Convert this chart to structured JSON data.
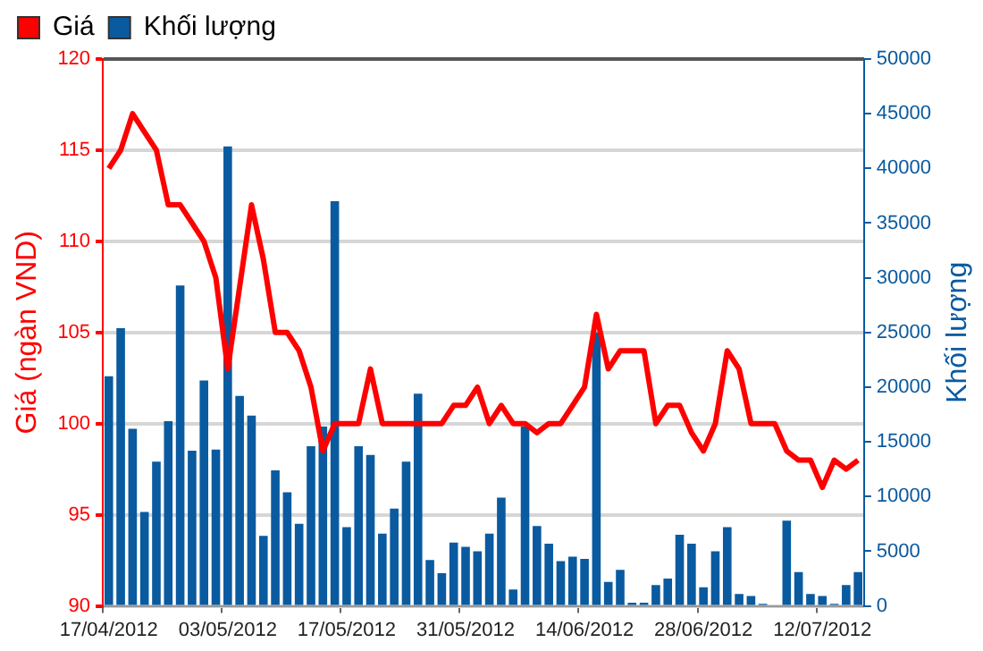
{
  "chart_data": {
    "type": "bar",
    "categories": [
      "17/04/2012",
      null,
      null,
      null,
      null,
      null,
      null,
      null,
      null,
      null,
      "03/05/2012",
      null,
      null,
      null,
      null,
      null,
      null,
      null,
      null,
      null,
      "17/05/2012",
      null,
      null,
      null,
      null,
      null,
      null,
      null,
      null,
      null,
      "31/05/2012",
      null,
      null,
      null,
      null,
      null,
      null,
      null,
      null,
      null,
      "14/06/2012",
      null,
      null,
      null,
      null,
      null,
      null,
      null,
      null,
      null,
      "28/06/2012",
      null,
      null,
      null,
      null,
      null,
      null,
      null,
      null,
      null,
      "12/07/2012",
      null,
      null,
      null
    ],
    "series": [
      {
        "name": "Giá",
        "type": "line",
        "axis": "y",
        "color": "#ff0000",
        "values": [
          114,
          115,
          117,
          116,
          115,
          112,
          112,
          111,
          110,
          108,
          103,
          107.5,
          112,
          109,
          105,
          105,
          104,
          102,
          98.5,
          100,
          100,
          100,
          103,
          100,
          100,
          100,
          100,
          100,
          100,
          101,
          101,
          102,
          100,
          101,
          100,
          100,
          99.5,
          100,
          100,
          101,
          102,
          106,
          103,
          104,
          104,
          104,
          100,
          101,
          101,
          99.5,
          98.5,
          100,
          104,
          103,
          100,
          100,
          100,
          98.5,
          98,
          98,
          96.5,
          98,
          97.5,
          98
        ]
      },
      {
        "name": "Khối lượng",
        "axis": "y2",
        "color": "#0a5aa0",
        "values": [
          21000,
          25400,
          16200,
          8600,
          13200,
          16900,
          29300,
          14200,
          20600,
          14300,
          42000,
          19200,
          17400,
          6400,
          12400,
          10400,
          7500,
          14600,
          16400,
          37000,
          7200,
          14600,
          13800,
          6600,
          8900,
          13200,
          19400,
          4200,
          3000,
          5800,
          5400,
          5000,
          6600,
          9900,
          1500,
          16400,
          7300,
          5700,
          4100,
          4500,
          4300,
          25000,
          2200,
          3300,
          300,
          300,
          1900,
          2500,
          6500,
          5700,
          1700,
          5000,
          7200,
          1100,
          900,
          200,
          0,
          7800,
          3100,
          1100,
          900,
          200,
          1900,
          3100
        ]
      }
    ],
    "ylabel": "Giá (ngàn VND)",
    "y2label": "Khối lượng",
    "ylim": [
      90,
      120
    ],
    "yticks": [
      90,
      95,
      100,
      105,
      110,
      115,
      120
    ],
    "y2lim": [
      0,
      50000
    ],
    "y2ticks": [
      0,
      5000,
      10000,
      15000,
      20000,
      25000,
      30000,
      35000,
      40000,
      45000,
      50000
    ],
    "grid": "y",
    "legend": "top left"
  }
}
